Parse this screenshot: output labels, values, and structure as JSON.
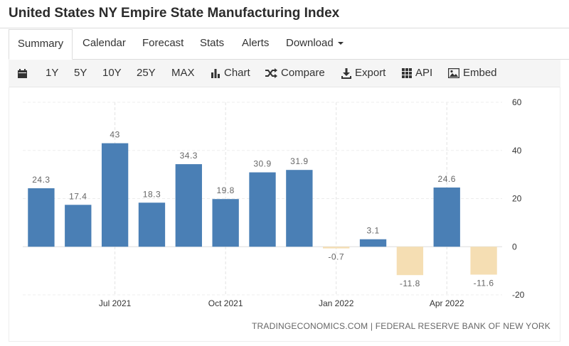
{
  "header": {
    "title": "United States NY Empire State Manufacturing Index"
  },
  "tabs": [
    {
      "label": "Summary",
      "active": true
    },
    {
      "label": "Calendar"
    },
    {
      "label": "Forecast"
    },
    {
      "label": "Stats"
    },
    {
      "label": "Alerts"
    },
    {
      "label": "Download"
    }
  ],
  "toolbar": {
    "calendar_icon": "calendar-icon",
    "ranges": [
      "1Y",
      "5Y",
      "10Y",
      "25Y",
      "MAX"
    ],
    "chart_label": "Chart",
    "compare_label": "Compare",
    "export_label": "Export",
    "api_label": "API",
    "embed_label": "Embed"
  },
  "chart_data": {
    "type": "bar",
    "categories": [
      "2021-05",
      "2021-06",
      "2021-07",
      "2021-08",
      "2021-09",
      "2021-10",
      "2021-11",
      "2021-12",
      "2022-01",
      "2022-02",
      "2022-03",
      "2022-04",
      "2022-05"
    ],
    "values": [
      24.3,
      17.4,
      43,
      18.3,
      34.3,
      19.8,
      30.9,
      31.9,
      -0.7,
      3.1,
      -11.8,
      24.6,
      -11.6
    ],
    "value_labels": [
      "24.3",
      "17.4",
      "43",
      "18.3",
      "34.3",
      "19.8",
      "30.9",
      "31.9",
      "-0.7",
      "3.1",
      "-11.8",
      "24.6",
      "-11.6"
    ],
    "x_tick_labels": [
      {
        "label": "Jul 2021",
        "category": "2021-07"
      },
      {
        "label": "Oct 2021",
        "category": "2021-10"
      },
      {
        "label": "Jan 2022",
        "category": "2022-01"
      },
      {
        "label": "Apr 2022",
        "category": "2022-04"
      }
    ],
    "y_ticks": [
      60,
      40,
      20,
      0,
      -20
    ],
    "ylim": [
      -20,
      60
    ],
    "y_axis_side": "right",
    "grid": true,
    "colors": {
      "positive": "#4a7fb5",
      "negative": "#f5deb3",
      "label": "#666666"
    }
  },
  "source": "TRADINGECONOMICS.COM | FEDERAL RESERVE BANK OF NEW YORK"
}
